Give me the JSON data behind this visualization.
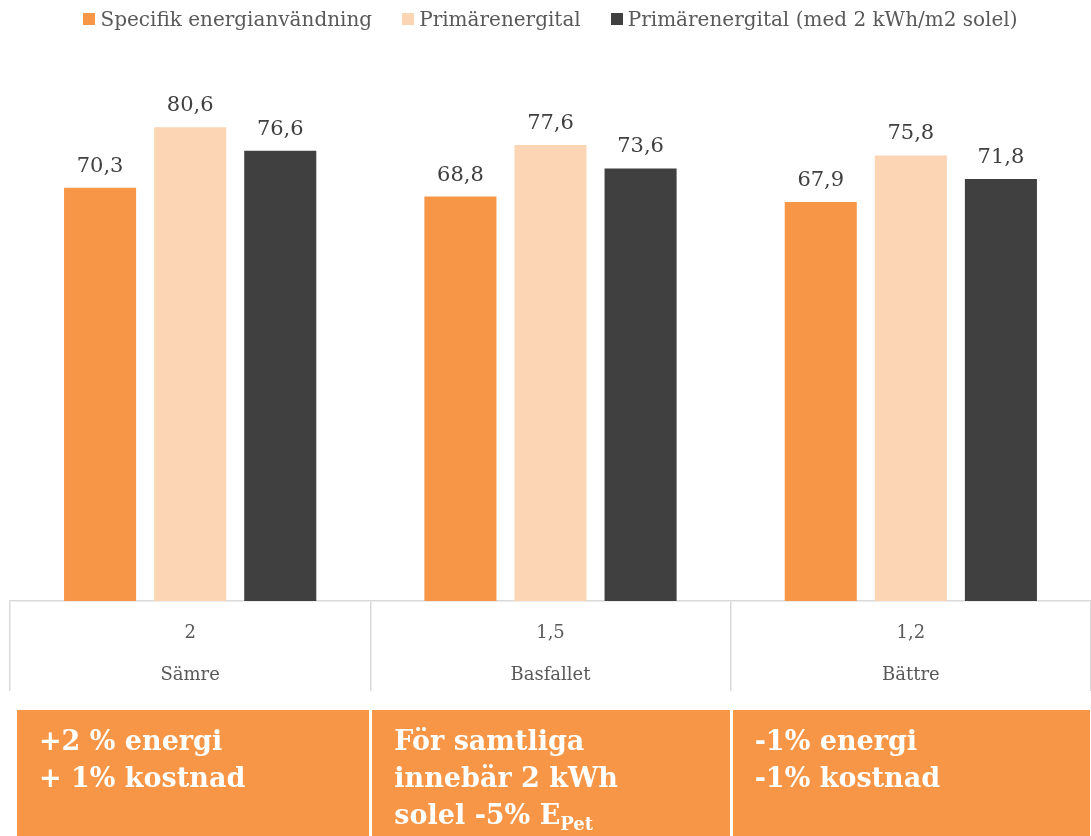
{
  "chart_data": {
    "type": "bar",
    "categories": [
      "2\nSämre",
      "1,5\nBasfallet",
      "1,2\nBättre"
    ],
    "series": [
      {
        "name": "Specifik energianvändning",
        "color": "#f79646",
        "values": [
          70.3,
          68.8,
          67.9
        ],
        "value_labels": [
          "70,3",
          "68,8",
          "67,9"
        ]
      },
      {
        "name": "Primärenergital",
        "color": "#fcd5b4",
        "values": [
          80.6,
          77.6,
          75.8
        ],
        "value_labels": [
          "80,6",
          "77,6",
          "75,8"
        ]
      },
      {
        "name": "Primärenergital (med 2 kWh/m2 solel)",
        "color": "#404040",
        "values": [
          76.6,
          73.6,
          71.8
        ],
        "value_labels": [
          "76,6",
          "73,6",
          "71,8"
        ]
      }
    ],
    "legend": "top",
    "tick_labels": "x",
    "annotations": [
      "+2 % energi\n+ 1% kostnad",
      "För samtliga\ninnebär 2 kWh\nsolel -5% E$_{Pet}$",
      "-1% energi\n-1% kostnad"
    ]
  }
}
